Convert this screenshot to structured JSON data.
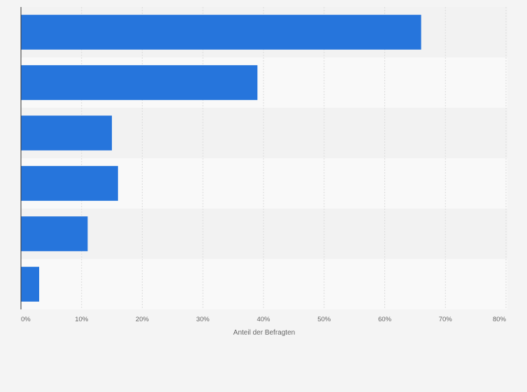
{
  "chart_data": {
    "type": "bar",
    "orientation": "horizontal",
    "categories": [
      "",
      "",
      "",
      "",
      "",
      ""
    ],
    "values": [
      66,
      39,
      15,
      16,
      11,
      3
    ],
    "xlabel": "Anteil der Befragten",
    "ylabel": "",
    "xlim": [
      0,
      80
    ],
    "ticks": [
      0,
      10,
      20,
      30,
      40,
      50,
      60,
      70,
      80
    ],
    "tick_labels": [
      "0%",
      "10%",
      "20%",
      "30%",
      "40%",
      "50%",
      "60%",
      "70%",
      "80%"
    ],
    "grid": true,
    "legend": "none",
    "colors": {
      "bar": "#2675dc",
      "band_dark": "#f2f2f2",
      "band_light": "#f9f9f9",
      "grid": "#dcdcdc",
      "axis": "#333333"
    }
  }
}
